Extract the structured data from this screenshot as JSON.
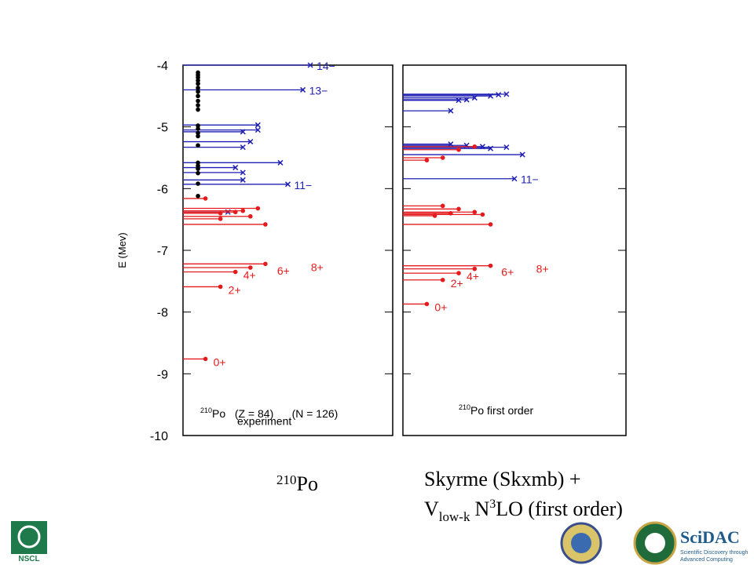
{
  "chart_data": {
    "type": "levels",
    "y_label": "E (Mev)",
    "ylim": [
      -10,
      -4
    ],
    "yticks": [
      -4,
      -5,
      -6,
      -7,
      -8,
      -9,
      -10
    ],
    "xlim": [
      -3,
      25
    ],
    "panels": [
      {
        "note_sup": "210",
        "note": "Po   (Z = 84)      (N = 126)",
        "subnote": "experiment",
        "series": [
          {
            "color": "#1f1fb4",
            "marker": "x",
            "values": [
              -4.0,
              -4.4,
              -4.97,
              -5.05,
              -5.08,
              -5.24,
              -5.33,
              -5.58,
              -5.66,
              -5.74,
              -5.86,
              -5.93,
              -6.38
            ],
            "x": [
              14,
              13,
              7,
              7,
              5,
              6,
              5,
              10,
              4,
              5,
              5,
              11,
              3
            ],
            "labels": [
              "14−",
              "13−",
              null,
              null,
              null,
              null,
              null,
              null,
              null,
              null,
              null,
              "11−",
              null
            ]
          },
          {
            "color": "#e41a1c",
            "marker": "dot",
            "values": [
              -6.16,
              -6.32,
              -6.36,
              -6.38,
              -6.4,
              -6.45,
              -6.49,
              -6.58,
              -7.22,
              -7.28,
              -7.35,
              -7.59,
              -8.76
            ],
            "x": [
              0,
              7,
              5,
              4,
              2,
              6,
              2,
              8,
              8,
              6,
              4,
              2,
              0
            ],
            "labels": [
              null,
              null,
              null,
              null,
              null,
              null,
              null,
              null,
              "8+",
              "6+",
              "4+",
              "2+",
              "0+"
            ]
          },
          {
            "color": "#000000",
            "marker": "dot",
            "lines": false,
            "values": [
              -4.12,
              -4.16,
              -4.2,
              -4.25,
              -4.3,
              -4.37,
              -4.43,
              -4.5,
              -4.58,
              -4.65,
              -4.72,
              -4.98,
              -5.03,
              -5.1,
              -5.15,
              -5.3,
              -5.58,
              -5.63,
              -5.68,
              -5.75,
              -5.92,
              -6.12
            ],
            "x": [
              -1,
              -1,
              -1,
              -1,
              -1,
              -1,
              -1,
              -1,
              -1,
              -1,
              -1,
              -1,
              -1,
              -1,
              -1,
              -1,
              -1,
              -1,
              -1,
              -1,
              -1,
              -1
            ]
          }
        ]
      },
      {
        "note_sup": "210",
        "note": "Po first order",
        "series": [
          {
            "color": "#1f1fb4",
            "marker": "x",
            "values": [
              -4.47,
              -4.48,
              -4.5,
              -4.53,
              -4.56,
              -4.57,
              -4.74,
              -5.28,
              -5.3,
              -5.32,
              -5.33,
              -5.35,
              -5.45,
              -5.84
            ],
            "x": [
              10,
              9,
              8,
              6,
              5,
              4,
              3,
              3,
              5,
              7,
              10,
              8,
              12,
              11
            ],
            "labels": [
              null,
              null,
              null,
              null,
              null,
              null,
              null,
              null,
              null,
              null,
              null,
              null,
              null,
              "11−"
            ]
          },
          {
            "color": "#e41a1c",
            "marker": "dot",
            "values": [
              -5.32,
              -5.37,
              -5.5,
              -5.54,
              -6.28,
              -6.33,
              -6.38,
              -6.4,
              -6.42,
              -6.44,
              -6.58,
              -7.25,
              -7.3,
              -7.37,
              -7.48,
              -7.87
            ],
            "x": [
              6,
              4,
              2,
              0,
              2,
              4,
              6,
              3,
              7,
              1,
              8,
              8,
              6,
              4,
              2,
              0
            ],
            "labels": [
              null,
              null,
              null,
              null,
              null,
              null,
              null,
              null,
              null,
              null,
              null,
              "8+",
              "6+",
              "4+",
              "2+",
              "0+"
            ]
          }
        ]
      }
    ]
  },
  "captions": {
    "left_sup": "210",
    "left": "Po",
    "right_line1": "Skyrme (Skxmb) +",
    "right_line2": [
      "V",
      "low-k",
      "N",
      "3",
      "LO (first order)"
    ]
  },
  "logos": {
    "nscl": "NSCL",
    "scidac": "SciDAC",
    "scidac_sub1": "Scientific Discovery through",
    "scidac_sub2": "Advanced Computing"
  }
}
